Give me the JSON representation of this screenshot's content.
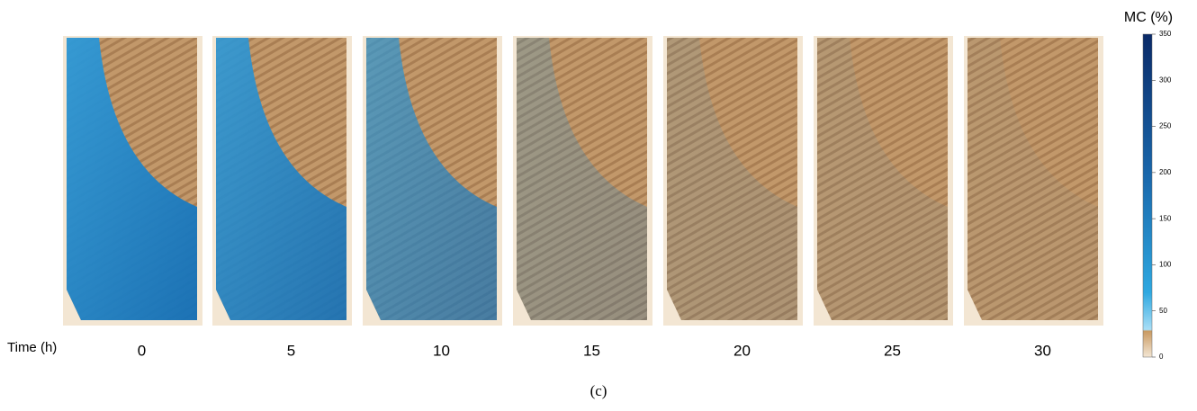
{
  "row_label": "Time (h)",
  "times": [
    0,
    5,
    10,
    15,
    20,
    25,
    30
  ],
  "caption": "(c)",
  "colorbar": {
    "title": "MC (%)",
    "lim": [
      0,
      350
    ],
    "ticks": [
      0,
      50,
      100,
      150,
      200,
      250,
      300,
      350
    ]
  }
}
